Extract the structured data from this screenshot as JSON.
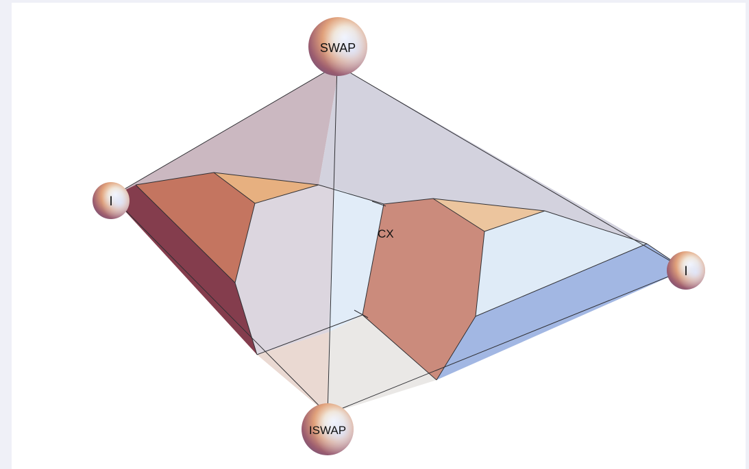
{
  "vertices": {
    "top": "SWAP",
    "left": "I",
    "right": "I",
    "bottom": "ISWAP"
  },
  "center_label": "CX",
  "colors": {
    "background": "#eff0f7",
    "canvas": "#ffffff",
    "top_left_face": "#cbb8c1",
    "top_right_face": "#d3d2de",
    "left_wall": "#843d4d",
    "left_region_top": "#c47560",
    "left_region_cap": "#e7b080",
    "middle_band": "#dcd6df",
    "center_band": "#e1ecf8",
    "right_region": "#cb8b7c",
    "right_region_cap": "#ecc59e",
    "right_light": "#dfebf7",
    "right_wall": "#a2b7e3",
    "bottom_left_face": "#ead9d2",
    "bottom_mid_face": "#eae8e6",
    "edge": "#2f2f33"
  }
}
